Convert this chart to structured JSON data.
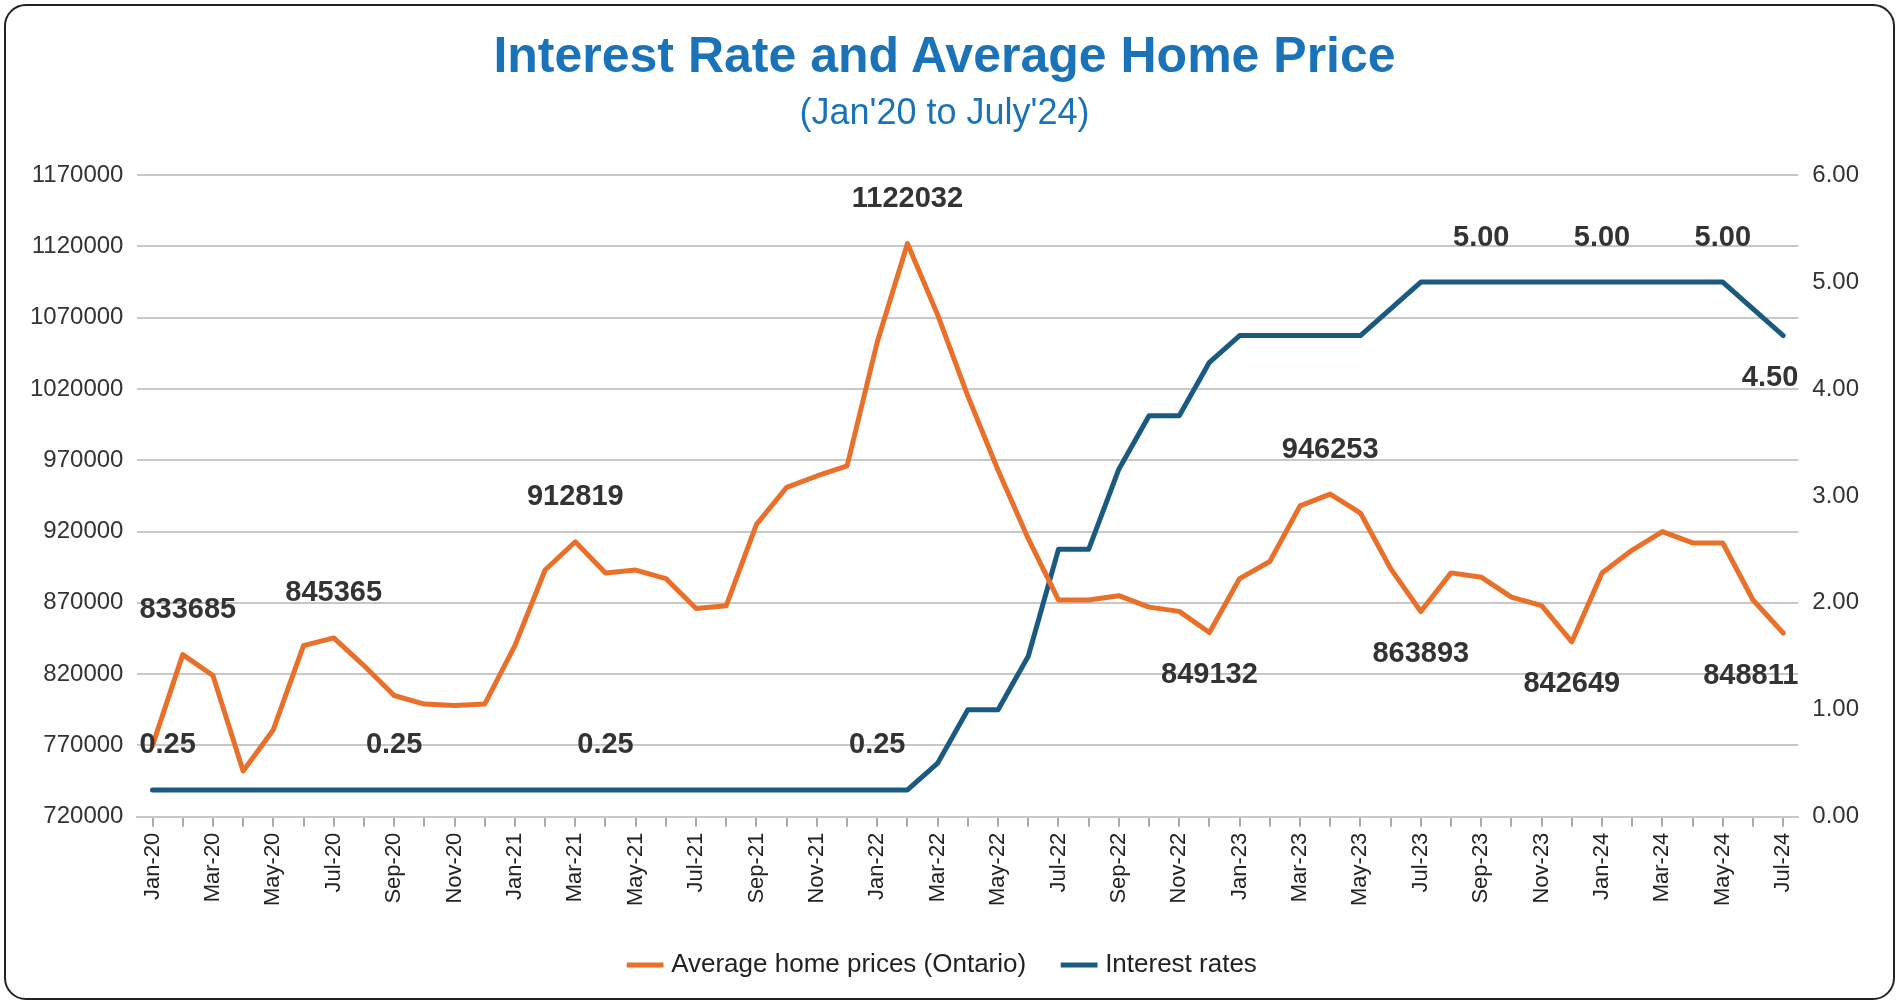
{
  "chart_data": {
    "type": "line",
    "title": "Interest Rate and Average Home Price",
    "subtitle": "(Jan'20 to July'24)",
    "categories": [
      "Jan-20",
      null,
      "Mar-20",
      null,
      "May-20",
      null,
      "Jul-20",
      null,
      "Sep-20",
      null,
      "Nov-20",
      null,
      "Jan-21",
      null,
      "Mar-21",
      null,
      "May-21",
      null,
      "Jul-21",
      null,
      "Sep-21",
      null,
      "Nov-21",
      null,
      "Jan-22",
      null,
      "Mar-22",
      null,
      "May-22",
      null,
      "Jul-22",
      null,
      "Sep-22",
      null,
      "Nov-22",
      null,
      "Jan-23",
      null,
      "Mar-23",
      null,
      "May-23",
      null,
      "Jul-23",
      null,
      "Sep-23",
      null,
      "Nov-23",
      null,
      "Jan-24",
      null,
      "Mar-24",
      null,
      "May-24",
      null,
      "Jul-24"
    ],
    "series": [
      {
        "name": "Average home prices (Ontario)",
        "color": "#e8702a",
        "values": [
          770000,
          833685,
          819000,
          752000,
          781000,
          840000,
          845365,
          826000,
          805000,
          799000,
          798000,
          799000,
          840000,
          893000,
          912819,
          891000,
          893000,
          887000,
          866000,
          868000,
          925000,
          951000,
          959000,
          966000,
          1053000,
          1122032,
          1072000,
          1015000,
          963000,
          915000,
          872000,
          872000,
          875000,
          867000,
          864000,
          849132,
          887000,
          899000,
          938000,
          946253,
          933000,
          894000,
          863893,
          891000,
          888000,
          874000,
          868000,
          842649,
          891000,
          907000,
          920000,
          912000,
          912000,
          872000,
          848811
        ],
        "value_labels": [
          null,
          "833685",
          null,
          null,
          null,
          null,
          "845365",
          null,
          null,
          null,
          null,
          null,
          null,
          null,
          "912819",
          null,
          null,
          null,
          null,
          null,
          null,
          null,
          null,
          null,
          null,
          "1122032",
          null,
          null,
          null,
          null,
          null,
          null,
          null,
          null,
          null,
          "849132",
          null,
          null,
          null,
          "946253",
          null,
          null,
          "863893",
          null,
          null,
          null,
          null,
          "842649",
          null,
          null,
          null,
          null,
          null,
          null,
          "848811"
        ]
      },
      {
        "name": "Interest rates",
        "color": "#1a5a80",
        "axis": "y2",
        "values": [
          0.25,
          0.25,
          0.25,
          0.25,
          0.25,
          0.25,
          0.25,
          0.25,
          0.25,
          0.25,
          0.25,
          0.25,
          0.25,
          0.25,
          0.25,
          0.25,
          0.25,
          0.25,
          0.25,
          0.25,
          0.25,
          0.25,
          0.25,
          0.25,
          0.25,
          0.25,
          0.5,
          1,
          1,
          1.5,
          2.5,
          2.5,
          3.25,
          3.75,
          3.75,
          4.25,
          4.5,
          4.5,
          4.5,
          4.5,
          4.5,
          4.75,
          5,
          5,
          5,
          5,
          5,
          5,
          5,
          5,
          5,
          5,
          5,
          4.75,
          4.5
        ],
        "value_labels": [
          "0.25",
          null,
          null,
          null,
          null,
          null,
          null,
          null,
          "0.25",
          null,
          null,
          null,
          null,
          null,
          null,
          "0.25",
          null,
          null,
          null,
          null,
          null,
          null,
          null,
          null,
          "0.25",
          null,
          null,
          null,
          null,
          null,
          null,
          null,
          null,
          null,
          null,
          null,
          null,
          null,
          null,
          null,
          null,
          null,
          null,
          null,
          "5.00",
          null,
          null,
          null,
          "5.00",
          null,
          null,
          null,
          "5.00",
          null,
          "4.50"
        ]
      }
    ],
    "ylim": [
      720000,
      1170000
    ],
    "yticks": [
      720000,
      770000,
      820000,
      870000,
      920000,
      970000,
      1020000,
      1070000,
      1120000,
      1170000
    ],
    "y2lim": [
      0,
      6
    ],
    "y2ticks": [
      {
        "value": 0,
        "label": "0.00"
      },
      {
        "value": 1,
        "label": "1.00"
      },
      {
        "value": 2,
        "label": "2.00"
      },
      {
        "value": 3,
        "label": "3.00"
      },
      {
        "value": 4,
        "label": "4.00"
      },
      {
        "value": 5,
        "label": "5.00"
      },
      {
        "value": 6,
        "label": "6.00"
      }
    ],
    "grid": "y",
    "legend": "bottom",
    "marker": "none",
    "line_style": "solid"
  }
}
